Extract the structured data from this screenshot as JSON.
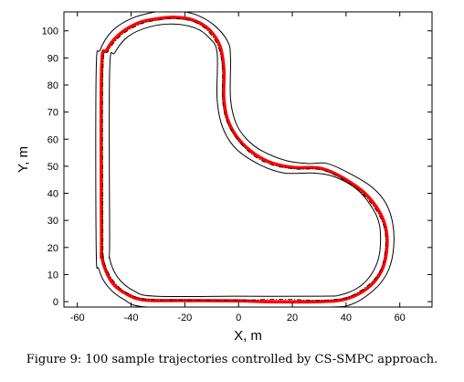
{
  "figure": {
    "caption": "Figure 9: 100 sample trajectories controlled by CS-SMPC approach."
  },
  "chart_data": {
    "type": "line",
    "xlabel": "X, m",
    "ylabel": "Y, m",
    "xlim": [
      -65,
      72
    ],
    "ylim": [
      -2,
      107
    ],
    "xticks": [
      -60,
      -40,
      -20,
      0,
      20,
      40,
      60
    ],
    "yticks": [
      0,
      10,
      20,
      30,
      40,
      50,
      60,
      70,
      80,
      90,
      100
    ],
    "grid": false,
    "legend": "none",
    "track": {
      "outer_boundary": [
        [
          -53,
          20
        ],
        [
          -53,
          85
        ],
        [
          -51.5,
          93
        ],
        [
          -47,
          100
        ],
        [
          -40,
          104.5
        ],
        [
          -31,
          107
        ],
        [
          -24,
          107.5
        ],
        [
          -16,
          106
        ],
        [
          -9,
          102
        ],
        [
          -4,
          96
        ],
        [
          -3,
          90
        ],
        [
          -3,
          75
        ],
        [
          -1,
          66
        ],
        [
          3,
          60
        ],
        [
          9,
          55.5
        ],
        [
          18,
          52
        ],
        [
          26,
          51
        ],
        [
          33,
          51
        ],
        [
          42,
          47
        ],
        [
          50,
          42
        ],
        [
          55,
          36
        ],
        [
          57.5,
          28
        ],
        [
          57.5,
          18
        ],
        [
          55,
          10
        ],
        [
          50,
          4
        ],
        [
          42,
          -1
        ],
        [
          33,
          -2
        ],
        [
          0,
          -2
        ],
        [
          -34,
          -2
        ],
        [
          -43,
          1
        ],
        [
          -49,
          6
        ],
        [
          -52,
          12
        ],
        [
          -53,
          20
        ]
      ],
      "inner_boundary": [
        [
          -48,
          23
        ],
        [
          -48,
          85
        ],
        [
          -46,
          92
        ],
        [
          -41,
          98
        ],
        [
          -33,
          101.5
        ],
        [
          -24,
          102.5
        ],
        [
          -16,
          101
        ],
        [
          -11,
          97.5
        ],
        [
          -8,
          92
        ],
        [
          -8,
          75
        ],
        [
          -6,
          64.5
        ],
        [
          -1,
          56.5
        ],
        [
          8,
          50.5
        ],
        [
          17,
          47.5
        ],
        [
          28,
          47.5
        ],
        [
          36,
          46
        ],
        [
          44,
          41.5
        ],
        [
          49.5,
          35
        ],
        [
          52.5,
          28
        ],
        [
          52.5,
          18
        ],
        [
          50,
          11
        ],
        [
          45,
          5.5
        ],
        [
          38,
          2.5
        ],
        [
          31,
          2
        ],
        [
          0,
          2
        ],
        [
          -31,
          2
        ],
        [
          -39,
          4
        ],
        [
          -45,
          9
        ],
        [
          -48,
          16
        ],
        [
          -48,
          23
        ]
      ]
    },
    "series": [
      {
        "color": "#ff0000",
        "points": [
          [
            -51,
            22
          ],
          [
            -51,
            85
          ],
          [
            -49,
            93
          ],
          [
            -44,
            99
          ],
          [
            -37,
            103
          ],
          [
            -30,
            104.5
          ],
          [
            -24,
            105
          ],
          [
            -17,
            104
          ],
          [
            -11,
            100.5
          ],
          [
            -7,
            94.5
          ],
          [
            -5.5,
            86
          ],
          [
            -5.5,
            75
          ],
          [
            -4,
            67
          ],
          [
            0,
            60
          ],
          [
            6,
            54.5
          ],
          [
            13,
            51
          ],
          [
            21,
            49.5
          ],
          [
            28,
            49.5
          ],
          [
            33,
            48.5
          ],
          [
            40,
            45
          ],
          [
            47,
            40
          ],
          [
            52.5,
            33
          ],
          [
            55,
            26
          ],
          [
            55,
            18
          ],
          [
            53,
            11
          ],
          [
            48,
            5
          ],
          [
            40,
            1
          ],
          [
            30,
            0
          ],
          [
            10,
            0
          ],
          [
            0,
            0.3
          ],
          [
            -20,
            0.4
          ],
          [
            -35,
            0.6
          ],
          [
            -42,
            3
          ],
          [
            -47,
            7
          ],
          [
            -50,
            13
          ],
          [
            -51,
            18
          ],
          [
            -51,
            22
          ]
        ]
      }
    ],
    "reference_path": {
      "color": "#000000",
      "style": "dash-dot",
      "points": [
        [
          -50.5,
          22
        ],
        [
          -50.5,
          85
        ],
        [
          -48.5,
          92.5
        ],
        [
          -43.5,
          98.5
        ],
        [
          -36.5,
          102.5
        ],
        [
          -30,
          104
        ],
        [
          -24,
          104.5
        ],
        [
          -17,
          103.5
        ],
        [
          -11.5,
          100
        ],
        [
          -7.5,
          94
        ],
        [
          -6,
          86
        ],
        [
          -6,
          75
        ],
        [
          -4.5,
          67
        ],
        [
          -0.5,
          60
        ],
        [
          5.5,
          54
        ],
        [
          12.5,
          50.5
        ],
        [
          21,
          49
        ],
        [
          28,
          49
        ],
        [
          33,
          48
        ],
        [
          40,
          44.5
        ],
        [
          46.5,
          39.5
        ],
        [
          52,
          32.5
        ],
        [
          54.5,
          26
        ],
        [
          54.5,
          18
        ],
        [
          52.5,
          11
        ],
        [
          47.5,
          5.5
        ],
        [
          40,
          1.5
        ],
        [
          30,
          0.5
        ],
        [
          20,
          0.8
        ],
        [
          10,
          0.8
        ],
        [
          0,
          0.5
        ],
        [
          -20,
          0.5
        ],
        [
          -35,
          1
        ],
        [
          -42,
          3.5
        ],
        [
          -46.5,
          7.5
        ],
        [
          -49.5,
          13
        ],
        [
          -50.5,
          18
        ],
        [
          -50.5,
          22
        ]
      ]
    }
  }
}
